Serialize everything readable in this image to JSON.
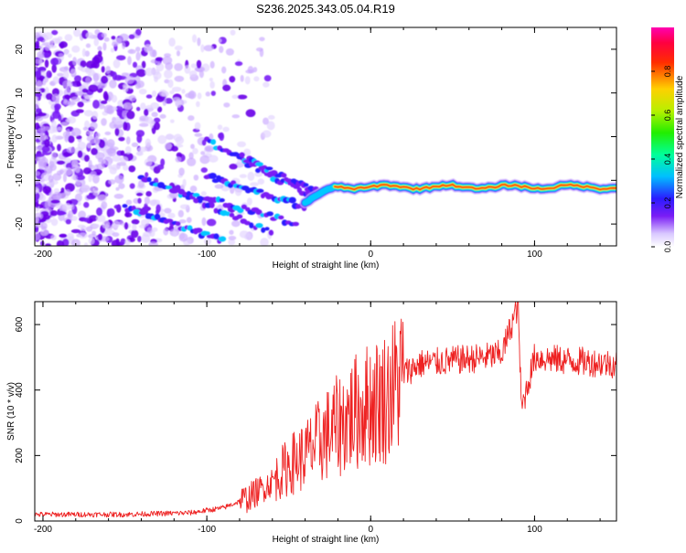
{
  "figure_title": "S236.2025.343.05.04.R19",
  "chart_data": [
    {
      "type": "heatmap",
      "title": "",
      "xlabel": "Height of straight line (km)",
      "ylabel": "Frequency (Hz)",
      "xlim": [
        -205,
        150
      ],
      "ylim": [
        -25,
        25
      ],
      "xticks": [
        -200,
        -100,
        0,
        100
      ],
      "yticks": [
        -20,
        -10,
        0,
        10,
        20
      ],
      "colorbar": {
        "label": "Normalized spectral amplitude",
        "range": [
          0,
          1
        ],
        "ticks": [
          0.0,
          0.2,
          0.4,
          0.6,
          0.8
        ],
        "tick_labels": [
          "0.0",
          "0.2",
          "0.4",
          "0.6",
          "0.8"
        ]
      },
      "features": [
        {
          "name": "noise-field",
          "x_range": [
            -205,
            -100
          ],
          "y_range": [
            -25,
            24
          ]
        },
        {
          "name": "converging-chirps",
          "x_range": [
            -140,
            -30
          ],
          "y_range": [
            -25,
            -3
          ]
        },
        {
          "name": "steady-tone",
          "x_range": [
            -40,
            150
          ],
          "y_approx": -11.5,
          "peak_amplitude": 1.0
        }
      ]
    },
    {
      "type": "line",
      "title": "",
      "xlabel": "Height of straight line (km)",
      "ylabel": "SNR (10 * v/v)",
      "xlim": [
        -205,
        150
      ],
      "ylim": [
        0,
        670
      ],
      "xticks": [
        -200,
        -100,
        0,
        100
      ],
      "yticks": [
        0,
        200,
        400,
        600
      ],
      "series": [
        {
          "name": "SNR",
          "color": "#ee2222",
          "x": [
            -205,
            -150,
            -110,
            -90,
            -75,
            -60,
            -50,
            -40,
            -30,
            -20,
            -10,
            0,
            10,
            20,
            30,
            50,
            70,
            80,
            90,
            92,
            100,
            120,
            150
          ],
          "y": [
            20,
            20,
            25,
            40,
            70,
            120,
            170,
            200,
            250,
            290,
            330,
            360,
            380,
            450,
            480,
            490,
            500,
            510,
            660,
            340,
            500,
            490,
            480
          ]
        }
      ]
    }
  ]
}
